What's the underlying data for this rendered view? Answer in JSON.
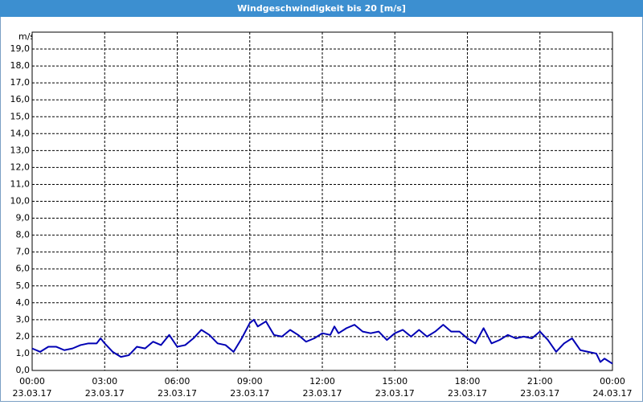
{
  "chart_data": {
    "type": "line",
    "title": "Windgeschwindigkeit bis 20 [m/s]",
    "y_label": "m/s",
    "ylim": [
      0,
      20
    ],
    "yticks": [
      {
        "value": 0,
        "label": "0,0"
      },
      {
        "value": 1,
        "label": "1,0"
      },
      {
        "value": 2,
        "label": "2,0"
      },
      {
        "value": 3,
        "label": "3,0"
      },
      {
        "value": 4,
        "label": "4,0"
      },
      {
        "value": 5,
        "label": "5,0"
      },
      {
        "value": 6,
        "label": "6,0"
      },
      {
        "value": 7,
        "label": "7,0"
      },
      {
        "value": 8,
        "label": "8,0"
      },
      {
        "value": 9,
        "label": "9,0"
      },
      {
        "value": 10,
        "label": "10,0"
      },
      {
        "value": 11,
        "label": "11,0"
      },
      {
        "value": 12,
        "label": "12,0"
      },
      {
        "value": 13,
        "label": "13,0"
      },
      {
        "value": 14,
        "label": "14,0"
      },
      {
        "value": 15,
        "label": "15,0"
      },
      {
        "value": 16,
        "label": "16,0"
      },
      {
        "value": 17,
        "label": "17,0"
      },
      {
        "value": 18,
        "label": "18,0"
      },
      {
        "value": 19,
        "label": "19,0"
      }
    ],
    "xlim": [
      0,
      24
    ],
    "xticks": [
      {
        "value": 0,
        "label": "00:00"
      },
      {
        "value": 3,
        "label": "03:00"
      },
      {
        "value": 6,
        "label": "06:00"
      },
      {
        "value": 9,
        "label": "09:00"
      },
      {
        "value": 12,
        "label": "12:00"
      },
      {
        "value": 15,
        "label": "15:00"
      },
      {
        "value": 18,
        "label": "18:00"
      },
      {
        "value": 21,
        "label": "21:00"
      },
      {
        "value": 24,
        "label": "00:00"
      }
    ],
    "xtick_dates": [
      "23.03.17",
      "23.03.17",
      "23.03.17",
      "23.03.17",
      "23.03.17",
      "23.03.17",
      "23.03.17",
      "23.03.17",
      "24.03.17"
    ],
    "grid": true,
    "series": [
      {
        "color": "#0000b4",
        "x": [
          0,
          0.33,
          0.67,
          1,
          1.33,
          1.67,
          2,
          2.33,
          2.67,
          2.83,
          3,
          3.33,
          3.67,
          4,
          4.33,
          4.67,
          5,
          5.33,
          5.67,
          6,
          6.33,
          6.67,
          7,
          7.33,
          7.67,
          8,
          8.33,
          8.67,
          9,
          9.17,
          9.33,
          9.67,
          10,
          10.33,
          10.67,
          11,
          11.33,
          11.67,
          12,
          12.33,
          12.5,
          12.67,
          13,
          13.33,
          13.67,
          14,
          14.33,
          14.67,
          15,
          15.33,
          15.67,
          16,
          16.33,
          16.67,
          17,
          17.33,
          17.67,
          18,
          18.33,
          18.67,
          19,
          19.33,
          19.67,
          20,
          20.33,
          20.67,
          21,
          21.33,
          21.67,
          22,
          22.33,
          22.67,
          23,
          23.33,
          23.5,
          23.67,
          24
        ],
        "values": [
          1.3,
          1.1,
          1.4,
          1.4,
          1.2,
          1.3,
          1.5,
          1.6,
          1.6,
          1.9,
          1.6,
          1.1,
          0.8,
          0.9,
          1.4,
          1.3,
          1.7,
          1.5,
          2.1,
          1.4,
          1.5,
          1.9,
          2.4,
          2.1,
          1.6,
          1.5,
          1.1,
          1.9,
          2.8,
          3.0,
          2.6,
          2.9,
          2.1,
          2.0,
          2.4,
          2.1,
          1.7,
          1.9,
          2.2,
          2.1,
          2.6,
          2.2,
          2.5,
          2.7,
          2.3,
          2.2,
          2.3,
          1.8,
          2.2,
          2.4,
          2.0,
          2.4,
          2.0,
          2.3,
          2.7,
          2.3,
          2.3,
          1.9,
          1.6,
          2.5,
          1.6,
          1.8,
          2.1,
          1.9,
          2.0,
          1.9,
          2.3,
          1.8,
          1.1,
          1.6,
          1.9,
          1.2,
          1.1,
          1.0,
          0.5,
          0.7,
          0.4
        ]
      }
    ]
  }
}
